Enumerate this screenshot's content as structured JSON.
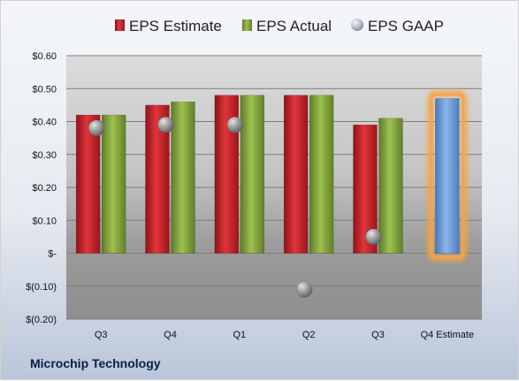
{
  "chart_data": {
    "type": "bar",
    "categories": [
      "Q3",
      "Q4",
      "Q1",
      "Q2",
      "Q3",
      "Q4 Estimate"
    ],
    "series": [
      {
        "name": "EPS Estimate",
        "values": [
          0.42,
          0.45,
          0.48,
          0.48,
          0.39,
          null
        ],
        "color": "#c0272d"
      },
      {
        "name": "EPS Actual",
        "values": [
          0.42,
          0.46,
          0.48,
          0.48,
          0.41,
          null
        ],
        "color": "#7f9f3a"
      },
      {
        "name": "EPS GAAP",
        "values": [
          0.38,
          0.39,
          0.39,
          -0.11,
          0.05,
          null
        ],
        "color": "#9a9a9a",
        "marker": "sphere"
      },
      {
        "name": "Q4 Estimate",
        "values": [
          null,
          null,
          null,
          null,
          null,
          0.47
        ],
        "color": "#6a9ad6",
        "highlight": "#f4a445"
      }
    ],
    "ylim": [
      -0.2,
      0.6
    ],
    "yticks": [
      {
        "value": 0.6,
        "label": "$0.60"
      },
      {
        "value": 0.5,
        "label": "$0.50"
      },
      {
        "value": 0.4,
        "label": "$0.40"
      },
      {
        "value": 0.3,
        "label": "$0.30"
      },
      {
        "value": 0.2,
        "label": "$0.20"
      },
      {
        "value": 0.1,
        "label": "$0.10"
      },
      {
        "value": 0.0,
        "label": "$-"
      },
      {
        "value": -0.1,
        "label": "$(0.10)"
      },
      {
        "value": -0.2,
        "label": "$(0.20)"
      }
    ],
    "grid": true,
    "legend": "top",
    "title": "",
    "xlabel": "",
    "ylabel": ""
  },
  "legend": {
    "estimate": "EPS Estimate",
    "actual": "EPS Actual",
    "gaap": "EPS GAAP"
  },
  "company": "Microchip Technology"
}
